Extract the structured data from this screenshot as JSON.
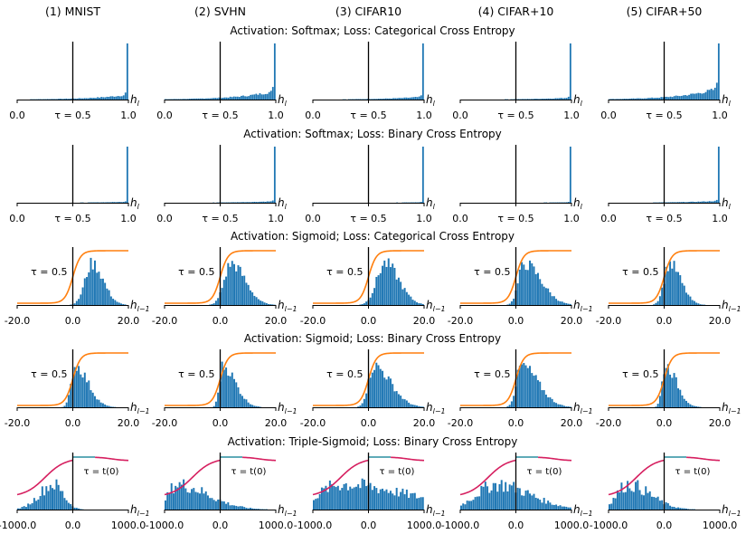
{
  "columns": [
    "(1) MNIST",
    "(2) SVHN",
    "(3) CIFAR10",
    "(4) CIFAR+10",
    "(5) CIFAR+50"
  ],
  "colors": {
    "hist": "#1f77b4",
    "sigmoid": "#ff7f0e",
    "triple_sigmoid": "#d62060",
    "tau_line": "#000000"
  },
  "chart_data": [
    {
      "row": 1,
      "type": "bar",
      "title": "Activation: Softmax; Loss: Categorical Cross Entropy",
      "xlabel": "h_l",
      "xlim": [
        0.0,
        1.0
      ],
      "tick_labels": [
        "0.0",
        "τ = 0.5",
        "1.0"
      ],
      "tau": 0.5,
      "histogram_shape": "spike at 1.0 with long tail toward 0.0",
      "series": [
        {
          "column": "(1) MNIST",
          "spike_at": 1.0,
          "tail_weight": 0.25
        },
        {
          "column": "(2) SVHN",
          "spike_at": 1.0,
          "tail_weight": 0.45
        },
        {
          "column": "(3) CIFAR10",
          "spike_at": 1.0,
          "tail_weight": 0.15
        },
        {
          "column": "(4) CIFAR+10",
          "spike_at": 1.0,
          "tail_weight": 0.1
        },
        {
          "column": "(5) CIFAR+50",
          "spike_at": 1.0,
          "tail_weight": 0.6
        }
      ]
    },
    {
      "row": 2,
      "type": "bar",
      "title": "Activation: Softmax; Loss: Binary Cross Entropy",
      "xlabel": "h_l",
      "xlim": [
        0.0,
        1.0
      ],
      "tick_labels": [
        "0.0",
        "τ = 0.5",
        "1.0"
      ],
      "tau": 0.5,
      "histogram_shape": "spike at 1.0",
      "series": [
        {
          "column": "(1) MNIST",
          "spike_at": 1.0,
          "tail_weight": 0.05
        },
        {
          "column": "(2) SVHN",
          "spike_at": 1.0,
          "tail_weight": 0.08
        },
        {
          "column": "(3) CIFAR10",
          "spike_at": 1.0,
          "tail_weight": 0.03
        },
        {
          "column": "(4) CIFAR+10",
          "spike_at": 1.0,
          "tail_weight": 0.03
        },
        {
          "column": "(5) CIFAR+50",
          "spike_at": 1.0,
          "tail_weight": 0.1
        }
      ]
    },
    {
      "row": 3,
      "type": "bar",
      "title": "Activation: Sigmoid; Loss: Categorical Cross Entropy",
      "xlabel": "h_{l-1}",
      "xlim": [
        -20.0,
        20.0
      ],
      "tick_labels": [
        "-20.0",
        "0.0",
        "20.0"
      ],
      "tau_label": "τ = 0.5",
      "curve": "sigmoid",
      "series": [
        {
          "column": "(1) MNIST",
          "mode": 7,
          "spread_left": 2.5,
          "spread_right": 4
        },
        {
          "column": "(2) SVHN",
          "mode": 4,
          "spread_left": 2.5,
          "spread_right": 5
        },
        {
          "column": "(3) CIFAR10",
          "mode": 6,
          "spread_left": 3,
          "spread_right": 5
        },
        {
          "column": "(4) CIFAR+10",
          "mode": 3,
          "spread_left": 2,
          "spread_right": 6
        },
        {
          "column": "(5) CIFAR+50",
          "mode": 2,
          "spread_left": 2,
          "spread_right": 4
        }
      ]
    },
    {
      "row": 4,
      "type": "bar",
      "title": "Activation: Sigmoid; Loss: Binary Cross Entropy",
      "xlabel": "h_{l-1}",
      "xlim": [
        -20.0,
        20.0
      ],
      "tick_labels": [
        "-20.0",
        "0.0",
        "20.0"
      ],
      "tau_label": "τ = 0.5",
      "curve": "sigmoid",
      "series": [
        {
          "column": "(1) MNIST",
          "mode": 1,
          "spread_left": 1.5,
          "spread_right": 4.5
        },
        {
          "column": "(2) SVHN",
          "mode": 1,
          "spread_left": 1.2,
          "spread_right": 4.5
        },
        {
          "column": "(3) CIFAR10",
          "mode": 2,
          "spread_left": 2,
          "spread_right": 6
        },
        {
          "column": "(4) CIFAR+10",
          "mode": 2,
          "spread_left": 1.8,
          "spread_right": 6
        },
        {
          "column": "(5) CIFAR+50",
          "mode": 0.5,
          "spread_left": 1.2,
          "spread_right": 4
        }
      ]
    },
    {
      "row": 5,
      "type": "bar",
      "title": "Activation: Triple-Sigmoid; Loss: Binary Cross Entropy",
      "xlabel": "h_{l-1}",
      "xlim": [
        -1000.0,
        1000.0
      ],
      "tick_labels": [
        "-1000.0",
        "0.0",
        "1000.0"
      ],
      "tau_label": "τ = t(0)",
      "curve": "triple-sigmoid",
      "series": [
        {
          "column": "(1) MNIST",
          "mode": -350,
          "spread_left": 250,
          "spread_right": 180
        },
        {
          "column": "(2) SVHN",
          "mode": -780,
          "spread_left": 150,
          "spread_right": 550
        },
        {
          "column": "(3) CIFAR10",
          "mode": -500,
          "spread_left": 400,
          "spread_right": 1200
        },
        {
          "column": "(4) CIFAR+10",
          "mode": -350,
          "spread_left": 350,
          "spread_right": 600
        },
        {
          "column": "(5) CIFAR+50",
          "mode": -650,
          "spread_left": 200,
          "spread_right": 400
        }
      ]
    }
  ]
}
